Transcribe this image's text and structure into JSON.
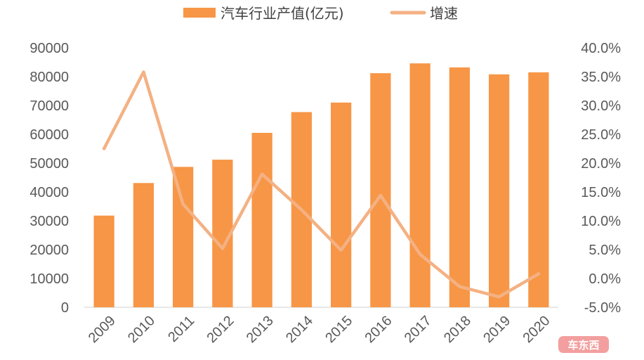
{
  "chart_data": {
    "type": "bar",
    "categories": [
      "2009",
      "2010",
      "2011",
      "2012",
      "2013",
      "2014",
      "2015",
      "2016",
      "2017",
      "2018",
      "2019",
      "2020"
    ],
    "series": [
      {
        "name": "汽车行业产值(亿元)",
        "type": "bar",
        "axis": "left",
        "color": "#F79646",
        "values": [
          31800,
          43100,
          48700,
          51200,
          60500,
          67700,
          71000,
          81200,
          84600,
          83200,
          80800,
          81500
        ]
      },
      {
        "name": "增速",
        "type": "line",
        "axis": "right",
        "color": "#F4B183",
        "values": [
          22.5,
          35.8,
          12.9,
          5.2,
          18.1,
          11.9,
          4.9,
          14.4,
          4.2,
          -1.4,
          -3.2,
          0.8
        ]
      }
    ],
    "y_left": {
      "lim": [
        0,
        90000
      ],
      "ticks": [
        "0",
        "10000",
        "20000",
        "30000",
        "40000",
        "50000",
        "60000",
        "70000",
        "80000",
        "90000"
      ]
    },
    "y_right": {
      "lim": [
        -5,
        40
      ],
      "ticks": [
        "-5.0%",
        "0.0%",
        "5.0%",
        "10.0%",
        "15.0%",
        "20.0%",
        "25.0%",
        "30.0%",
        "35.0%",
        "40.0%"
      ]
    },
    "title": "",
    "xlabel": "",
    "ylabel": "",
    "grid": false,
    "legend_position": "top-center"
  },
  "watermark": {
    "text": "车东西",
    "color": "#F08080"
  }
}
